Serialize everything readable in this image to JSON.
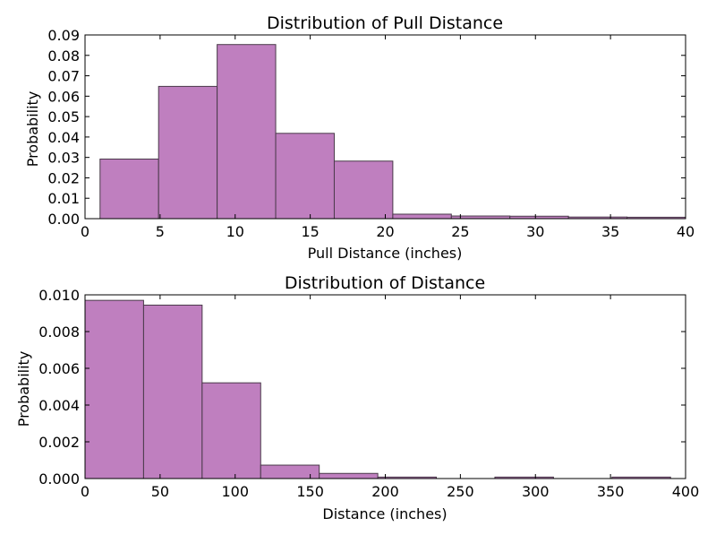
{
  "colors": {
    "bar_fill": "#bf7fbf",
    "bar_edge": "#4a3a4a",
    "axis": "#000000"
  },
  "chart_data": [
    {
      "type": "bar",
      "title": "Distribution of Pull Distance",
      "xlabel": "Pull Distance (inches)",
      "ylabel": "Probability",
      "xlim": [
        0,
        40
      ],
      "ylim": [
        0,
        0.09
      ],
      "grid": false,
      "xticks": [
        "0",
        "5",
        "10",
        "15",
        "20",
        "25",
        "30",
        "35",
        "40"
      ],
      "yticks": [
        "0.00",
        "0.01",
        "0.02",
        "0.03",
        "0.04",
        "0.05",
        "0.06",
        "0.07",
        "0.08",
        "0.09"
      ],
      "bins": [
        {
          "x0": 1.0,
          "x1": 4.9,
          "value": 0.0292
        },
        {
          "x0": 4.9,
          "x1": 8.8,
          "value": 0.0648
        },
        {
          "x0": 8.8,
          "x1": 12.7,
          "value": 0.0853
        },
        {
          "x0": 12.7,
          "x1": 16.6,
          "value": 0.0418
        },
        {
          "x0": 16.6,
          "x1": 20.5,
          "value": 0.0282
        },
        {
          "x0": 20.5,
          "x1": 24.4,
          "value": 0.0022
        },
        {
          "x0": 24.4,
          "x1": 28.3,
          "value": 0.0013
        },
        {
          "x0": 28.3,
          "x1": 32.2,
          "value": 0.0012
        },
        {
          "x0": 32.2,
          "x1": 36.1,
          "value": 0.0008
        },
        {
          "x0": 36.1,
          "x1": 40.0,
          "value": 0.0007
        }
      ]
    },
    {
      "type": "bar",
      "title": "Distribution of Distance",
      "xlabel": "Distance (inches)",
      "ylabel": "Probability",
      "xlim": [
        0,
        400
      ],
      "ylim": [
        0,
        0.01
      ],
      "grid": false,
      "xticks": [
        "0",
        "50",
        "100",
        "150",
        "200",
        "250",
        "300",
        "350",
        "400"
      ],
      "yticks": [
        "0.000",
        "0.002",
        "0.004",
        "0.006",
        "0.008",
        "0.010"
      ],
      "bins": [
        {
          "x0": 0,
          "x1": 39,
          "value": 0.0097
        },
        {
          "x0": 39,
          "x1": 78,
          "value": 0.00944
        },
        {
          "x0": 78,
          "x1": 117,
          "value": 0.00521
        },
        {
          "x0": 117,
          "x1": 156,
          "value": 0.00073
        },
        {
          "x0": 156,
          "x1": 195,
          "value": 0.00028
        },
        {
          "x0": 195,
          "x1": 234,
          "value": 8e-05
        },
        {
          "x0": 234,
          "x1": 273,
          "value": 0.0
        },
        {
          "x0": 273,
          "x1": 312,
          "value": 8e-05
        },
        {
          "x0": 312,
          "x1": 351,
          "value": 0.0
        },
        {
          "x0": 351,
          "x1": 390,
          "value": 8e-05
        }
      ]
    }
  ]
}
